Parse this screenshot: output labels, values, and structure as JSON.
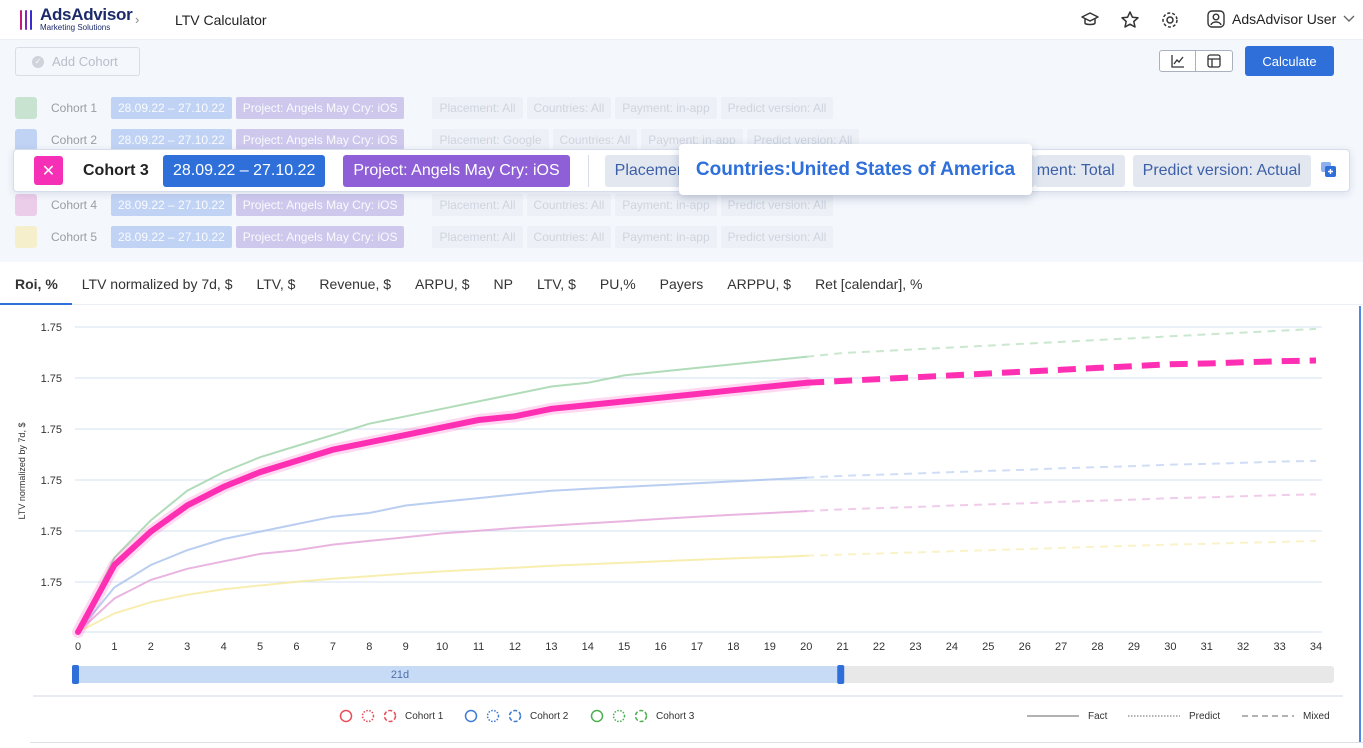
{
  "header": {
    "logo_title": "AdsAdvisor",
    "logo_sub": "Marketing Solutions",
    "page_title": "LTV Calculator",
    "user": "AdsAdvisor User",
    "icons": [
      "graduation-cap-icon",
      "star-icon",
      "gear-icon"
    ]
  },
  "toolbar": {
    "add_cohort": "Add Cohort",
    "calculate": "Calculate"
  },
  "cohorts": [
    {
      "label": "Cohort 1",
      "color": "#9ed3a7",
      "date": "28.09.22 – 27.10.22",
      "project": "Project: Angels May Cry: iOS",
      "placement": "Placement: All",
      "countries": "Countries: All",
      "payment": "Payment: in-app",
      "predict": "Predict version: All"
    },
    {
      "label": "Cohort 2",
      "color": "#8fb0ee",
      "date": "28.09.22 – 27.10.22",
      "project": "Project: Angels May Cry: iOS",
      "placement": "Placement: Google",
      "countries": "Countries: All",
      "payment": "Payment: in-app",
      "predict": "Predict version: All"
    },
    {
      "label": "Cohort 4",
      "color": "#e3a3d8",
      "date": "28.09.22 – 27.10.22",
      "project": "Project: Angels May Cry: iOS",
      "placement": "Placement: All",
      "countries": "Countries: All",
      "payment": "Payment: in-app",
      "predict": "Predict version: All"
    },
    {
      "label": "Cohort 5",
      "color": "#f6ea9c",
      "date": "28.09.22 – 27.10.22",
      "project": "Project: Angels May Cry: iOS",
      "placement": "Placement: All",
      "countries": "Countries: All",
      "payment": "Payment: in-app",
      "predict": "Predict version: All"
    }
  ],
  "active_cohort": {
    "label": "Cohort 3",
    "date": "28.09.22 – 27.10.22",
    "project": "Project: Angels May Cry: iOS",
    "placement": "Placement:",
    "payment": "ment: Total",
    "predict": "Predict version: Actual",
    "tooltip": "Countries:United States of America"
  },
  "tabs": [
    "Roi, %",
    "LTV normalized by 7d, $",
    "LTV, $",
    "Revenue, $",
    "ARPU, $",
    "NP",
    "LTV, $",
    "PU,%",
    "Payers",
    "ARPPU, $",
    "Ret [calendar], %"
  ],
  "selected_tab": 0,
  "chart_data": {
    "type": "line",
    "ylabel": "LTV normalized by 7d, $",
    "y_tick_labels": [
      "1.75",
      "1.75",
      "1.75",
      "1.75",
      "1.75",
      "1.75"
    ],
    "x": [
      0,
      1,
      2,
      3,
      4,
      5,
      6,
      7,
      8,
      9,
      10,
      11,
      12,
      13,
      14,
      15,
      16,
      17,
      18,
      19,
      20,
      21,
      22,
      23,
      24,
      25,
      26,
      27,
      28,
      29,
      30,
      31,
      32,
      33,
      34
    ],
    "fact_until": 20,
    "range_label": "21d",
    "series": [
      {
        "color": "#9ed3a7",
        "values": [
          0,
          0.2,
          0.3,
          0.38,
          0.43,
          0.47,
          0.5,
          0.53,
          0.56,
          0.58,
          0.6,
          0.62,
          0.64,
          0.66,
          0.67,
          0.69,
          0.7,
          0.71,
          0.72,
          0.73,
          0.74,
          0.75,
          0.755,
          0.76,
          0.765,
          0.77,
          0.775,
          0.78,
          0.785,
          0.79,
          0.795,
          0.8,
          0.805,
          0.81,
          0.815
        ]
      },
      {
        "color": "#ff2fb4",
        "values": [
          0,
          0.18,
          0.27,
          0.34,
          0.39,
          0.43,
          0.46,
          0.49,
          0.51,
          0.53,
          0.55,
          0.57,
          0.58,
          0.6,
          0.61,
          0.62,
          0.63,
          0.64,
          0.65,
          0.66,
          0.67,
          0.675,
          0.68,
          0.685,
          0.69,
          0.695,
          0.7,
          0.705,
          0.71,
          0.715,
          0.72,
          0.722,
          0.725,
          0.728,
          0.73
        ],
        "highlight": true
      },
      {
        "color": "#a7c2ee",
        "values": [
          0,
          0.12,
          0.18,
          0.22,
          0.25,
          0.27,
          0.29,
          0.31,
          0.32,
          0.34,
          0.35,
          0.36,
          0.37,
          0.38,
          0.385,
          0.39,
          0.395,
          0.4,
          0.405,
          0.41,
          0.415,
          0.42,
          0.423,
          0.426,
          0.43,
          0.433,
          0.436,
          0.44,
          0.443,
          0.446,
          0.45,
          0.452,
          0.455,
          0.458,
          0.46
        ]
      },
      {
        "color": "#e3a3d8",
        "values": [
          0,
          0.09,
          0.14,
          0.17,
          0.19,
          0.21,
          0.22,
          0.235,
          0.245,
          0.255,
          0.265,
          0.272,
          0.28,
          0.286,
          0.292,
          0.298,
          0.304,
          0.31,
          0.315,
          0.32,
          0.325,
          0.33,
          0.333,
          0.336,
          0.34,
          0.343,
          0.346,
          0.35,
          0.353,
          0.356,
          0.36,
          0.362,
          0.365,
          0.368,
          0.37
        ]
      },
      {
        "color": "#f6ea9c",
        "values": [
          0,
          0.05,
          0.08,
          0.1,
          0.115,
          0.125,
          0.135,
          0.143,
          0.15,
          0.157,
          0.163,
          0.168,
          0.173,
          0.178,
          0.182,
          0.186,
          0.19,
          0.194,
          0.198,
          0.201,
          0.205,
          0.208,
          0.211,
          0.214,
          0.217,
          0.22,
          0.223,
          0.226,
          0.229,
          0.232,
          0.235,
          0.237,
          0.24,
          0.242,
          0.245
        ]
      }
    ]
  },
  "legend": {
    "cohorts": [
      "Cohort 1",
      "Cohort 2",
      "Cohort 3"
    ],
    "cohort_colors": [
      "#e84d5b",
      "#3e7bd6",
      "#4cb050"
    ],
    "fact": "Fact",
    "predict": "Predict",
    "mixed": "Mixed"
  }
}
